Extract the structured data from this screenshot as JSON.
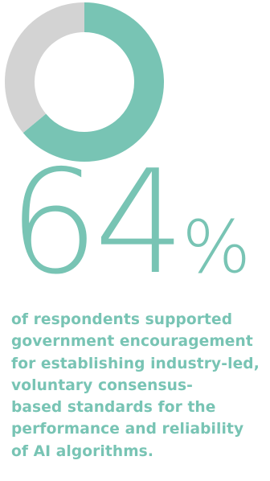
{
  "colors": {
    "accent": "#78c4b4",
    "remainder": "#d3d3d3",
    "background": "#ffffff"
  },
  "chart_data": {
    "type": "pie",
    "variant": "donut",
    "slices": [
      {
        "value": 64,
        "color": "#78c4b4"
      },
      {
        "value": 36,
        "color": "#d3d3d3"
      }
    ],
    "title": "",
    "legend": "none"
  },
  "stat": {
    "number": "64",
    "percent_sign": "%"
  },
  "caption": {
    "lines": [
      "of respondents supported",
      "government encouragement",
      "for establishing industry-led,",
      "voluntary consensus-",
      "based standards for the",
      "performance and reliability",
      "of AI algorithms."
    ]
  }
}
